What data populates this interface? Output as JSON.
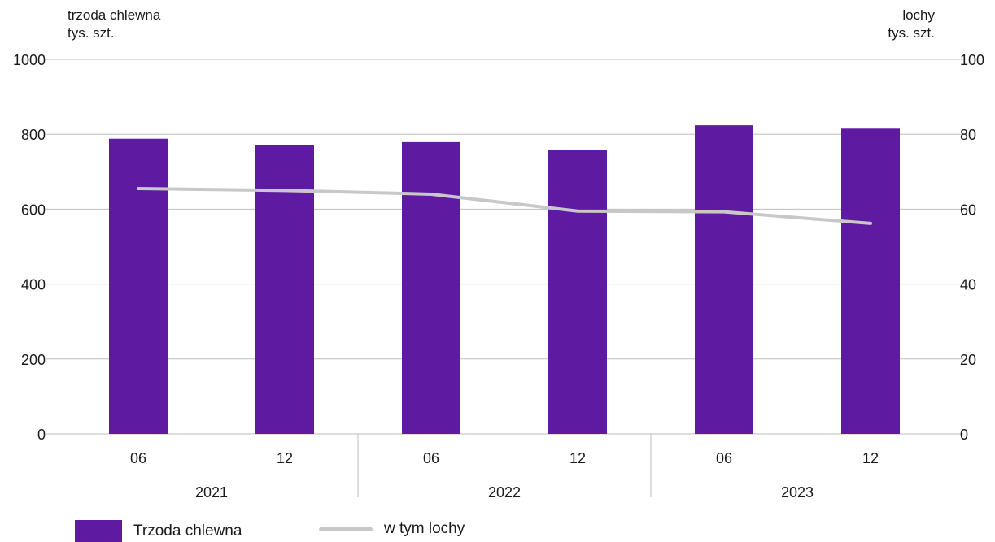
{
  "chart_data": {
    "type": "bar",
    "colors": {
      "bars": "#5e1aa0",
      "line": "#c8c8c8",
      "grid": "#bdbdbd",
      "text": "#1a1a1a"
    },
    "left_axis": {
      "title_line1": "trzoda chlewna",
      "title_line2": "tys. szt.",
      "ylim": [
        0,
        1000
      ],
      "ticks": [
        "0",
        "200",
        "400",
        "600",
        "800",
        "1000"
      ]
    },
    "right_axis": {
      "title_line1": "lochy",
      "title_line2": "tys. szt.",
      "ylim": [
        0,
        100
      ],
      "ticks": [
        "0",
        "20",
        "40",
        "60",
        "80",
        "100"
      ]
    },
    "categories": [
      "06",
      "12",
      "06",
      "12",
      "06",
      "12"
    ],
    "years": [
      "2021",
      "2022",
      "2023"
    ],
    "series": [
      {
        "name": "Trzoda chlewna",
        "type": "bar",
        "axis": "left",
        "values": [
          788,
          771,
          779,
          757,
          824,
          815
        ]
      },
      {
        "name": "w tym lochy",
        "type": "line",
        "axis": "right",
        "values": [
          65.5,
          65.0,
          64.0,
          59.5,
          59.3,
          56.2
        ]
      }
    ],
    "grid": true,
    "legend": "bottom-left"
  }
}
